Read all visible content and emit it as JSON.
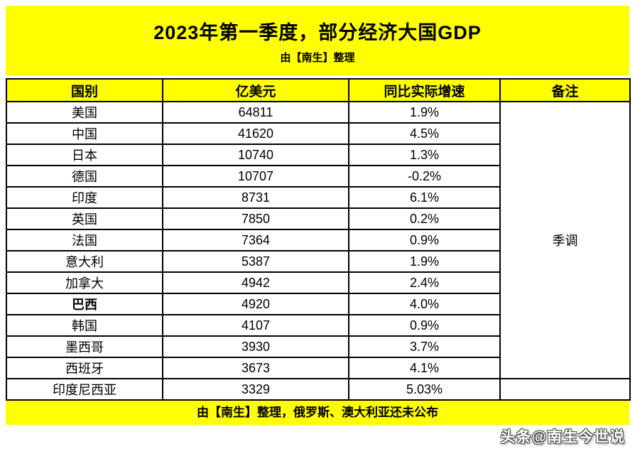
{
  "banner": {
    "title": "2023年第一季度，部分经济大国GDP",
    "subtitle": "由【南生】整理"
  },
  "footer": {
    "text": "由【南生】整理，俄罗斯、澳大利亚还未公布",
    "watermark": "头条@南生今世说"
  },
  "colors": {
    "banner_bg": "#FFFF00",
    "row_bg": "#FFFFFF",
    "border": "#000000",
    "text": "#000000",
    "watermark_fill": "#FFFFFF"
  },
  "chart_data": {
    "type": "table",
    "title": "2023年第一季度，部分经济大国GDP",
    "subtitle": "由【南生】整理",
    "columns": [
      "国别",
      "亿美元",
      "同比实际增速",
      "备注"
    ],
    "rows": [
      {
        "country": "美国",
        "gdp_100m_usd": 64811,
        "yoy_growth": "1.9%",
        "emphasis": false
      },
      {
        "country": "中国",
        "gdp_100m_usd": 41620,
        "yoy_growth": "4.5%",
        "emphasis": false
      },
      {
        "country": "日本",
        "gdp_100m_usd": 10740,
        "yoy_growth": "1.3%",
        "emphasis": false
      },
      {
        "country": "德国",
        "gdp_100m_usd": 10707,
        "yoy_growth": "-0.2%",
        "emphasis": false
      },
      {
        "country": "印度",
        "gdp_100m_usd": 8731,
        "yoy_growth": "6.1%",
        "emphasis": false
      },
      {
        "country": "英国",
        "gdp_100m_usd": 7850,
        "yoy_growth": "0.2%",
        "emphasis": false
      },
      {
        "country": "法国",
        "gdp_100m_usd": 7364,
        "yoy_growth": "0.9%",
        "emphasis": false
      },
      {
        "country": "意大利",
        "gdp_100m_usd": 5387,
        "yoy_growth": "1.9%",
        "emphasis": false
      },
      {
        "country": "加拿大",
        "gdp_100m_usd": 4942,
        "yoy_growth": "2.4%",
        "emphasis": false
      },
      {
        "country": "巴西",
        "gdp_100m_usd": 4920,
        "yoy_growth": "4.0%",
        "emphasis": true
      },
      {
        "country": "韩国",
        "gdp_100m_usd": 4107,
        "yoy_growth": "0.9%",
        "emphasis": false
      },
      {
        "country": "墨西哥",
        "gdp_100m_usd": 3930,
        "yoy_growth": "3.7%",
        "emphasis": false
      },
      {
        "country": "西班牙",
        "gdp_100m_usd": 3673,
        "yoy_growth": "4.1%",
        "emphasis": false
      },
      {
        "country": "印度尼西亚",
        "gdp_100m_usd": 3329,
        "yoy_growth": "5.03%",
        "emphasis": false
      }
    ],
    "merged_note": {
      "text": "季调",
      "rowspan": 13
    }
  }
}
